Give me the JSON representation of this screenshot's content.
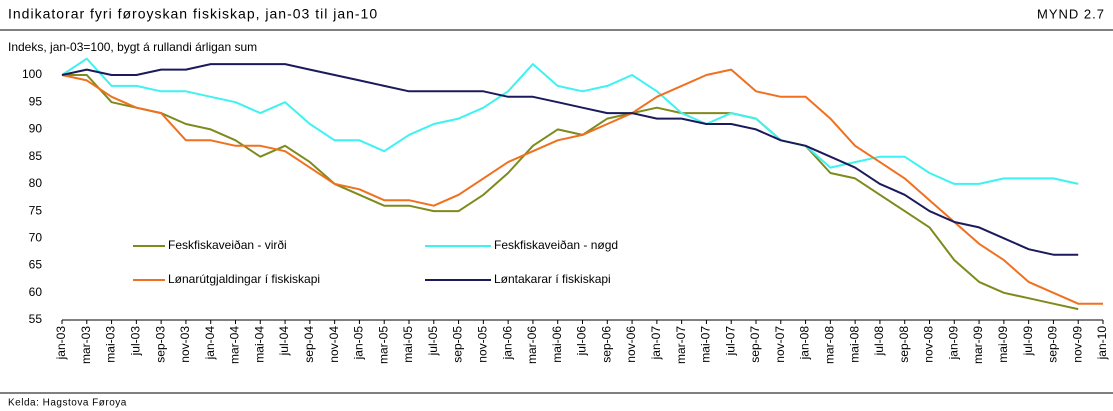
{
  "chart_data": {
    "type": "line",
    "title": "Indikatorar fyri føroyskan fiskiskap, jan-03 til jan-10",
    "figure_label": "MYND 2.7",
    "subtitle": "Indeks, jan-03=100, bygt á rullandi árligan sum",
    "source": "Kelda: Hagstova Føroya",
    "categories": [
      "jan-03",
      "mar-03",
      "mai-03",
      "jul-03",
      "sep-03",
      "nov-03",
      "jan-04",
      "mar-04",
      "mai-04",
      "jul-04",
      "sep-04",
      "nov-04",
      "jan-05",
      "mar-05",
      "mai-05",
      "jul-05",
      "sep-05",
      "nov-05",
      "jan-06",
      "mar-06",
      "mai-06",
      "jul-06",
      "sep-06",
      "nov-06",
      "jan-07",
      "mar-07",
      "mai-07",
      "jul-07",
      "sep-07",
      "nov-07",
      "jan-08",
      "mar-08",
      "mai-08",
      "jul-08",
      "sep-08",
      "nov-08",
      "jan-09",
      "mar-09",
      "mai-09",
      "jul-09",
      "sep-09",
      "nov-09",
      "jan-10"
    ],
    "series": [
      {
        "name": "Feskfiskaveiðan - virði",
        "color": "#7f8a1c",
        "values": [
          100,
          100,
          95,
          94,
          93,
          91,
          90,
          88,
          85,
          87,
          84,
          80,
          78,
          76,
          76,
          75,
          75,
          78,
          82,
          87,
          90,
          89,
          92,
          93,
          94,
          93,
          93,
          93,
          92,
          88,
          87,
          82,
          81,
          78,
          75,
          72,
          66,
          62,
          60,
          59,
          58,
          57,
          null
        ]
      },
      {
        "name": "Feskfiskaveiðan - nøgd",
        "color": "#3ff2f2",
        "values": [
          100,
          103,
          98,
          98,
          97,
          97,
          96,
          95,
          93,
          95,
          91,
          88,
          88,
          86,
          89,
          91,
          92,
          94,
          97,
          102,
          98,
          97,
          98,
          100,
          97,
          93,
          91,
          93,
          92,
          88,
          87,
          83,
          84,
          85,
          85,
          82,
          80,
          80,
          81,
          81,
          81,
          80,
          null
        ]
      },
      {
        "name": "Lønarútgjaldingar í fiskiskapi",
        "color": "#f07020",
        "values": [
          100,
          99,
          96,
          94,
          93,
          88,
          88,
          87,
          87,
          86,
          83,
          80,
          79,
          77,
          77,
          76,
          78,
          81,
          84,
          86,
          88,
          89,
          91,
          93,
          96,
          98,
          100,
          101,
          97,
          96,
          96,
          92,
          87,
          84,
          81,
          77,
          73,
          69,
          66,
          62,
          60,
          58,
          58
        ]
      },
      {
        "name": "Løntakarar í fiskiskapi",
        "color": "#1a1a5c",
        "values": [
          100,
          101,
          100,
          100,
          101,
          101,
          102,
          102,
          102,
          102,
          101,
          100,
          99,
          98,
          97,
          97,
          97,
          97,
          96,
          96,
          95,
          94,
          93,
          93,
          92,
          92,
          91,
          91,
          90,
          88,
          87,
          85,
          83,
          80,
          78,
          75,
          73,
          72,
          70,
          68,
          67,
          67,
          null
        ]
      }
    ],
    "ylim": [
      55,
      100
    ],
    "yticks": [
      55,
      60,
      65,
      70,
      75,
      80,
      85,
      90,
      95,
      100
    ],
    "grid": false
  }
}
